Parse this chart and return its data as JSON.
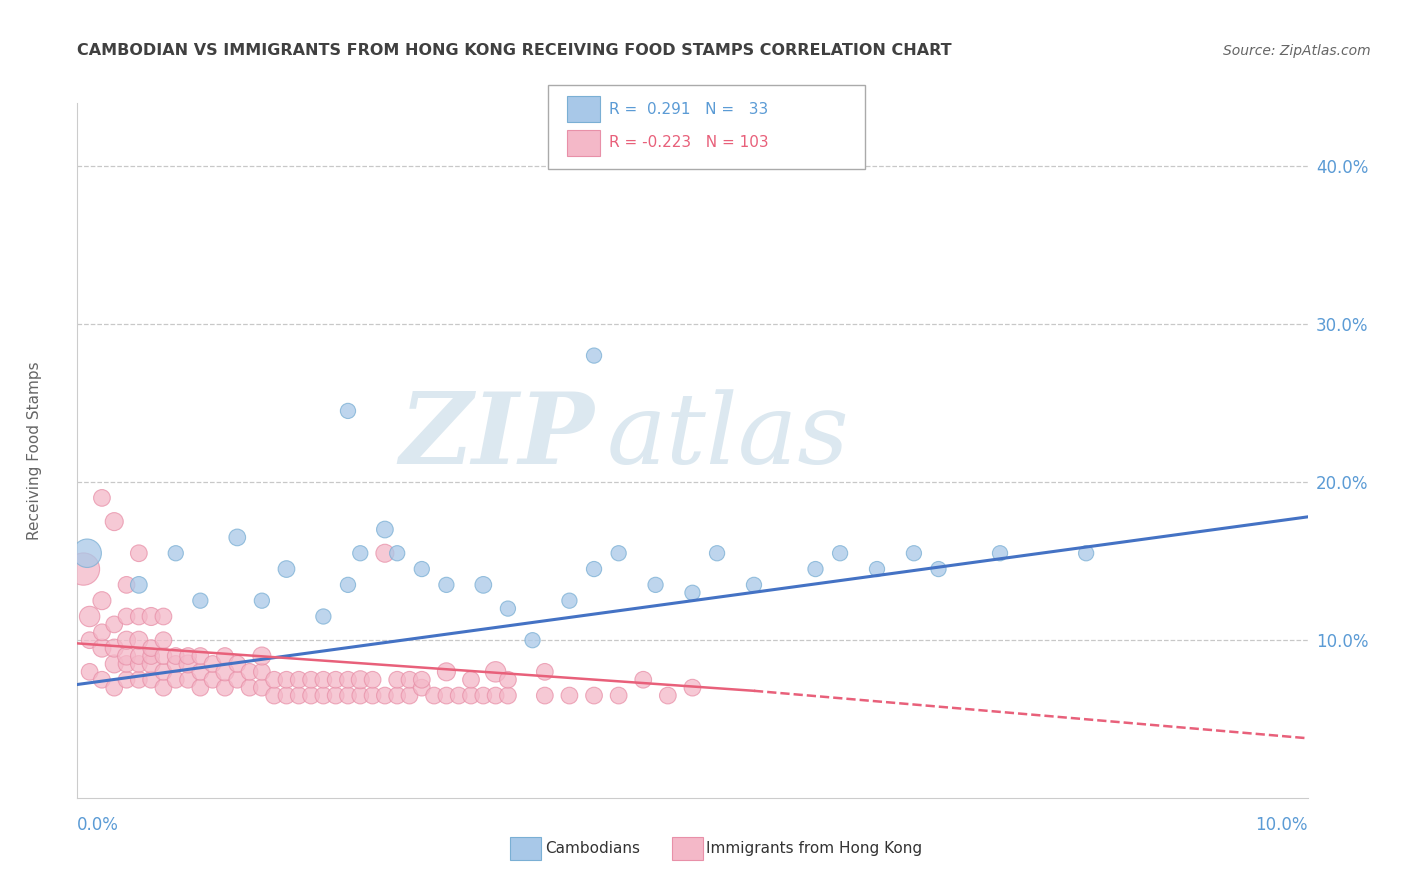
{
  "title": "CAMBODIAN VS IMMIGRANTS FROM HONG KONG RECEIVING FOOD STAMPS CORRELATION CHART",
  "source": "Source: ZipAtlas.com",
  "ylabel": "Receiving Food Stamps",
  "yaxis_values": [
    0.0,
    0.1,
    0.2,
    0.3,
    0.4
  ],
  "xlim": [
    0.0,
    0.1
  ],
  "ylim": [
    0.0,
    0.44
  ],
  "cambodian_color": "#a8c8e8",
  "cambodian_edge": "#7aafd4",
  "hk_color": "#f4b8c8",
  "hk_edge": "#e890a8",
  "cambodian_line_color": "#4472c4",
  "hk_line_color": "#e8607a",
  "background_color": "#ffffff",
  "grid_color": "#c8c8c8",
  "title_color": "#404040",
  "axis_label_color": "#5b9bd5",
  "watermark_color": "#dce8f0",
  "legend_box_color": "#aaaaaa",
  "blue_line": [
    [
      0.0,
      0.072
    ],
    [
      0.1,
      0.178
    ]
  ],
  "pink_line_solid": [
    [
      0.0,
      0.098
    ],
    [
      0.055,
      0.068
    ]
  ],
  "pink_line_dashed": [
    [
      0.055,
      0.068
    ],
    [
      0.1,
      0.038
    ]
  ],
  "cambodian_points": [
    [
      0.0008,
      0.155,
      35
    ],
    [
      0.005,
      0.135,
      12
    ],
    [
      0.008,
      0.155,
      10
    ],
    [
      0.01,
      0.125,
      10
    ],
    [
      0.013,
      0.165,
      12
    ],
    [
      0.015,
      0.125,
      10
    ],
    [
      0.017,
      0.145,
      12
    ],
    [
      0.02,
      0.115,
      10
    ],
    [
      0.022,
      0.135,
      10
    ],
    [
      0.023,
      0.155,
      10
    ],
    [
      0.025,
      0.17,
      12
    ],
    [
      0.026,
      0.155,
      10
    ],
    [
      0.028,
      0.145,
      10
    ],
    [
      0.03,
      0.135,
      10
    ],
    [
      0.033,
      0.135,
      12
    ],
    [
      0.035,
      0.12,
      10
    ],
    [
      0.037,
      0.1,
      10
    ],
    [
      0.04,
      0.125,
      10
    ],
    [
      0.042,
      0.145,
      10
    ],
    [
      0.044,
      0.155,
      10
    ],
    [
      0.047,
      0.135,
      10
    ],
    [
      0.05,
      0.13,
      10
    ],
    [
      0.052,
      0.155,
      10
    ],
    [
      0.055,
      0.135,
      10
    ],
    [
      0.06,
      0.145,
      10
    ],
    [
      0.062,
      0.155,
      10
    ],
    [
      0.065,
      0.145,
      10
    ],
    [
      0.068,
      0.155,
      10
    ],
    [
      0.07,
      0.145,
      10
    ],
    [
      0.075,
      0.155,
      10
    ],
    [
      0.082,
      0.155,
      10
    ],
    [
      0.022,
      0.245,
      10
    ],
    [
      0.042,
      0.28,
      10
    ]
  ],
  "hk_points": [
    [
      0.001,
      0.08,
      12
    ],
    [
      0.001,
      0.1,
      12
    ],
    [
      0.001,
      0.115,
      18
    ],
    [
      0.002,
      0.075,
      12
    ],
    [
      0.002,
      0.095,
      14
    ],
    [
      0.002,
      0.105,
      12
    ],
    [
      0.002,
      0.125,
      14
    ],
    [
      0.002,
      0.19,
      12
    ],
    [
      0.003,
      0.07,
      12
    ],
    [
      0.003,
      0.085,
      14
    ],
    [
      0.003,
      0.095,
      14
    ],
    [
      0.003,
      0.11,
      12
    ],
    [
      0.003,
      0.175,
      14
    ],
    [
      0.004,
      0.075,
      12
    ],
    [
      0.004,
      0.085,
      12
    ],
    [
      0.004,
      0.09,
      14
    ],
    [
      0.004,
      0.1,
      14
    ],
    [
      0.004,
      0.115,
      12
    ],
    [
      0.004,
      0.135,
      12
    ],
    [
      0.005,
      0.075,
      12
    ],
    [
      0.005,
      0.085,
      12
    ],
    [
      0.005,
      0.09,
      12
    ],
    [
      0.005,
      0.1,
      14
    ],
    [
      0.005,
      0.115,
      12
    ],
    [
      0.005,
      0.155,
      12
    ],
    [
      0.006,
      0.075,
      12
    ],
    [
      0.006,
      0.085,
      14
    ],
    [
      0.006,
      0.09,
      12
    ],
    [
      0.006,
      0.095,
      12
    ],
    [
      0.006,
      0.115,
      14
    ],
    [
      0.007,
      0.07,
      12
    ],
    [
      0.007,
      0.08,
      12
    ],
    [
      0.007,
      0.09,
      12
    ],
    [
      0.007,
      0.1,
      12
    ],
    [
      0.007,
      0.115,
      12
    ],
    [
      0.008,
      0.075,
      12
    ],
    [
      0.008,
      0.085,
      12
    ],
    [
      0.008,
      0.09,
      12
    ],
    [
      0.009,
      0.075,
      12
    ],
    [
      0.009,
      0.085,
      14
    ],
    [
      0.009,
      0.09,
      12
    ],
    [
      0.01,
      0.07,
      12
    ],
    [
      0.01,
      0.08,
      12
    ],
    [
      0.01,
      0.09,
      12
    ],
    [
      0.011,
      0.075,
      12
    ],
    [
      0.011,
      0.085,
      12
    ],
    [
      0.012,
      0.07,
      12
    ],
    [
      0.012,
      0.08,
      14
    ],
    [
      0.012,
      0.09,
      12
    ],
    [
      0.013,
      0.075,
      12
    ],
    [
      0.013,
      0.085,
      12
    ],
    [
      0.014,
      0.07,
      12
    ],
    [
      0.014,
      0.08,
      12
    ],
    [
      0.015,
      0.07,
      12
    ],
    [
      0.015,
      0.08,
      12
    ],
    [
      0.015,
      0.09,
      14
    ],
    [
      0.016,
      0.065,
      12
    ],
    [
      0.016,
      0.075,
      12
    ],
    [
      0.017,
      0.065,
      12
    ],
    [
      0.017,
      0.075,
      12
    ],
    [
      0.018,
      0.065,
      12
    ],
    [
      0.018,
      0.075,
      12
    ],
    [
      0.019,
      0.065,
      12
    ],
    [
      0.019,
      0.075,
      12
    ],
    [
      0.02,
      0.065,
      12
    ],
    [
      0.02,
      0.075,
      12
    ],
    [
      0.021,
      0.065,
      12
    ],
    [
      0.021,
      0.075,
      12
    ],
    [
      0.022,
      0.065,
      12
    ],
    [
      0.022,
      0.075,
      12
    ],
    [
      0.023,
      0.065,
      12
    ],
    [
      0.023,
      0.075,
      14
    ],
    [
      0.024,
      0.065,
      12
    ],
    [
      0.024,
      0.075,
      12
    ],
    [
      0.025,
      0.065,
      12
    ],
    [
      0.025,
      0.155,
      14
    ],
    [
      0.026,
      0.065,
      12
    ],
    [
      0.026,
      0.075,
      12
    ],
    [
      0.027,
      0.065,
      12
    ],
    [
      0.027,
      0.075,
      12
    ],
    [
      0.028,
      0.07,
      12
    ],
    [
      0.028,
      0.075,
      12
    ],
    [
      0.029,
      0.065,
      12
    ],
    [
      0.03,
      0.065,
      12
    ],
    [
      0.03,
      0.08,
      14
    ],
    [
      0.031,
      0.065,
      12
    ],
    [
      0.032,
      0.065,
      12
    ],
    [
      0.032,
      0.075,
      12
    ],
    [
      0.033,
      0.065,
      12
    ],
    [
      0.034,
      0.065,
      12
    ],
    [
      0.034,
      0.08,
      18
    ],
    [
      0.035,
      0.065,
      12
    ],
    [
      0.035,
      0.075,
      12
    ],
    [
      0.038,
      0.065,
      12
    ],
    [
      0.038,
      0.08,
      12
    ],
    [
      0.04,
      0.065,
      12
    ],
    [
      0.042,
      0.065,
      12
    ],
    [
      0.044,
      0.065,
      12
    ],
    [
      0.046,
      0.075,
      12
    ],
    [
      0.048,
      0.065,
      12
    ],
    [
      0.05,
      0.07,
      12
    ],
    [
      0.0005,
      0.145,
      45
    ]
  ]
}
